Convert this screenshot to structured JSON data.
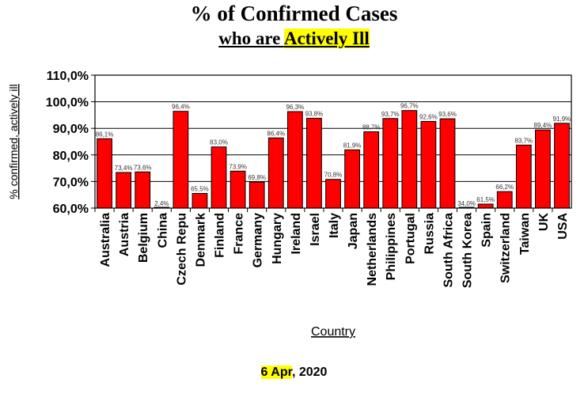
{
  "header": {
    "title": "% of Confirmed Cases",
    "subtitle_prefix": "who are ",
    "subtitle_highlight": "Actively Ill"
  },
  "footer": {
    "date_highlight": "6 Apr",
    "date_rest": ", 2020"
  },
  "colors": {
    "bar_fill": "#ff0000",
    "bar_stroke": "#000000",
    "highlight": "#ffff00"
  },
  "chart_data": {
    "type": "bar",
    "title": "% of Confirmed Cases who are Actively Ill",
    "xlabel": "Country",
    "ylabel": "% confirmed, actively ill",
    "ylim": [
      60,
      110
    ],
    "yticks": [
      60,
      70,
      80,
      90,
      100,
      110
    ],
    "ytick_labels": [
      "60,0%",
      "70,0%",
      "80,0%",
      "90,0%",
      "100,0%",
      "110,0%"
    ],
    "grid": true,
    "categories": [
      "Australia",
      "Austria",
      "Belgium",
      "China",
      "Czech Repu",
      "Denmark",
      "Finland",
      "France",
      "Germany",
      "Hungary",
      "Ireland",
      "Israel",
      "Italy",
      "Japan",
      "Netherlands",
      "Philippines",
      "Portugal",
      "Russia",
      "South Africa",
      "South Korea",
      "Spain",
      "Switzerland",
      "Taiwan",
      "UK",
      "USA"
    ],
    "values": [
      86.1,
      73.4,
      73.6,
      2.4,
      96.4,
      65.5,
      83.0,
      73.9,
      69.8,
      86.4,
      96.3,
      93.8,
      70.8,
      81.9,
      88.7,
      93.7,
      96.7,
      92.6,
      93.6,
      34.0,
      61.5,
      66.2,
      83.7,
      89.4,
      91.9
    ],
    "data_labels": [
      "86,1%",
      "73,4%",
      "73,6%",
      "2,4%",
      "96,4%",
      "65,5%",
      "83,0%",
      "73,9%",
      "69,8%",
      "86,4%",
      "96,3%",
      "93,8%",
      "70,8%",
      "81,9%",
      "88,7%",
      "93,7%",
      "96,7%",
      "92,6%",
      "93,6%",
      "34,0%",
      "61,5%",
      "66,2%",
      "83,7%",
      "89,4%",
      "91,9%"
    ]
  }
}
